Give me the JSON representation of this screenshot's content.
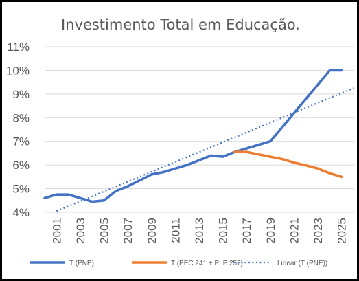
{
  "chart_data": {
    "type": "line",
    "title": "Investimento Total em Educação.",
    "xlabel": "",
    "ylabel": "",
    "x_tick_labels": [
      "2001",
      "2003",
      "2005",
      "2007",
      "2009",
      "2011",
      "2013",
      "2015",
      "2017",
      "2019",
      "2021",
      "2023",
      "2025"
    ],
    "y_tick_labels": [
      "4%",
      "5%",
      "6%",
      "7%",
      "8%",
      "9%",
      "10%",
      "11%"
    ],
    "ylim": [
      4,
      11
    ],
    "xlim": [
      2000,
      2026
    ],
    "grid": "horizontal",
    "legend_position": "bottom",
    "series": [
      {
        "name": "T (PNE)",
        "color": "#4472C4",
        "style": "solid",
        "x": [
          2000,
          2001,
          2002,
          2003,
          2004,
          2005,
          2006,
          2007,
          2008,
          2009,
          2010,
          2011,
          2012,
          2013,
          2014,
          2015,
          2016,
          2017,
          2018,
          2019,
          2020,
          2021,
          2022,
          2023,
          2024,
          2025
        ],
        "values": [
          4.6,
          4.75,
          4.75,
          4.6,
          4.45,
          4.5,
          4.9,
          5.1,
          5.35,
          5.6,
          5.7,
          5.85,
          6.0,
          6.2,
          6.4,
          6.35,
          6.55,
          6.7,
          6.85,
          7.0,
          7.6,
          8.2,
          8.8,
          9.4,
          10.0,
          10.0
        ]
      },
      {
        "name": "T (PEC 241 + PLP 257)",
        "color": "#ED7D31",
        "style": "solid",
        "x": [
          2016,
          2017,
          2018,
          2019,
          2020,
          2021,
          2022,
          2023,
          2024,
          2025
        ],
        "values": [
          6.55,
          6.55,
          6.45,
          6.35,
          6.25,
          6.1,
          5.98,
          5.85,
          5.65,
          5.5
        ]
      },
      {
        "name": "Linear (T (PNE))",
        "color": "#4472C4",
        "style": "dotted",
        "x": [
          2001,
          2026
        ],
        "values": [
          4.05,
          9.25
        ]
      }
    ]
  }
}
